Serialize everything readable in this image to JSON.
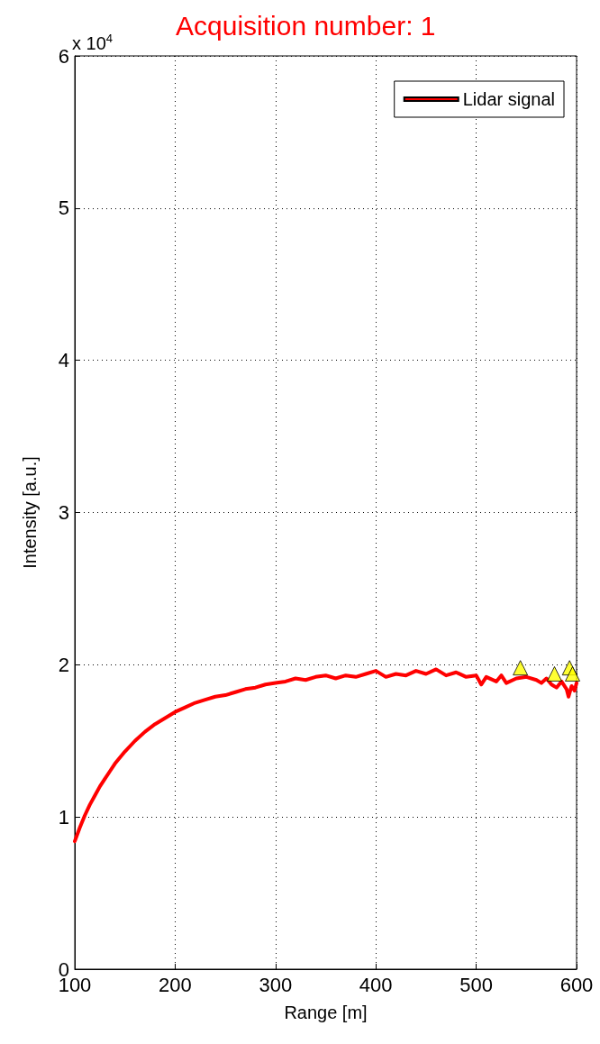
{
  "chart_data": {
    "type": "line",
    "title": "Acquisition number: 1",
    "xlabel": "Range [m]",
    "ylabel": "Intensity [a.u.]",
    "annotations": [
      "x 10$^{4}$"
    ],
    "xlim": [
      100,
      600
    ],
    "xticks": [
      100,
      200,
      300,
      400,
      500,
      600
    ],
    "ylim": [
      0,
      6
    ],
    "yticks": [
      0,
      1,
      2,
      3,
      4,
      5,
      6
    ],
    "grid": true,
    "legend": "top right",
    "series": [
      {
        "name": "Lidar signal",
        "color": "#ff0000",
        "line_style": "solid",
        "marker": "none",
        "x": [
          100,
          105,
          110,
          115,
          120,
          125,
          130,
          135,
          140,
          145,
          150,
          160,
          170,
          180,
          190,
          200,
          210,
          220,
          230,
          240,
          250,
          260,
          270,
          280,
          290,
          300,
          310,
          320,
          330,
          340,
          350,
          360,
          370,
          380,
          390,
          400,
          410,
          420,
          430,
          440,
          450,
          460,
          470,
          480,
          490,
          500,
          505,
          510,
          520,
          525,
          530,
          540,
          550,
          560,
          565,
          570,
          575,
          580,
          585,
          590,
          592,
          595,
          598,
          600
        ],
        "values": [
          0.84,
          0.93,
          1.01,
          1.08,
          1.14,
          1.2,
          1.25,
          1.3,
          1.35,
          1.39,
          1.43,
          1.5,
          1.56,
          1.61,
          1.65,
          1.69,
          1.72,
          1.75,
          1.77,
          1.79,
          1.8,
          1.82,
          1.84,
          1.85,
          1.87,
          1.88,
          1.89,
          1.91,
          1.9,
          1.92,
          1.93,
          1.91,
          1.93,
          1.92,
          1.94,
          1.96,
          1.92,
          1.94,
          1.93,
          1.96,
          1.94,
          1.97,
          1.93,
          1.95,
          1.92,
          1.93,
          1.87,
          1.92,
          1.89,
          1.93,
          1.88,
          1.91,
          1.92,
          1.9,
          1.88,
          1.91,
          1.87,
          1.85,
          1.89,
          1.84,
          1.79,
          1.86,
          1.83,
          1.88
        ]
      },
      {
        "type": "scatter",
        "color": "#ffff00",
        "marker": "triangle",
        "x": [
          544,
          578,
          593,
          596
        ],
        "values": [
          1.98,
          1.94,
          1.98,
          1.94
        ]
      }
    ]
  }
}
